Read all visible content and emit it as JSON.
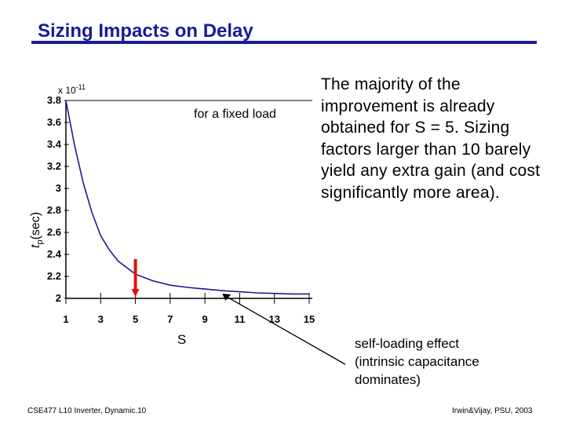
{
  "slide": {
    "title": "Sizing Impacts on Delay",
    "body": "The majority of the improvement is already obtained for S = 5.  Sizing factors larger than 10 barely yield any extra gain (and cost significantly more area).",
    "annotation": "self-loading effect (intrinsic capacitance dominates)",
    "footer_left": "CSE477  L10 Inverter, Dynamic.10",
    "footer_right": "Irwin&Vijay, PSU, 2003",
    "colors": {
      "title": "#1a1a9a",
      "curve": "#1a1a9a",
      "marker": "#e01010"
    }
  },
  "chart_data": {
    "type": "line",
    "title": "",
    "xlabel": "S",
    "ylabel": "tp(sec)",
    "ylabel_base": "t",
    "ylabel_sub": "p",
    "ylabel_unit": "(sec)",
    "y_multiplier": "x 10-11",
    "y_multiplier_base": "x 10",
    "y_multiplier_exp": "-11",
    "legend_text": "for a fixed load",
    "xlim": [
      1,
      15
    ],
    "ylim": [
      2,
      3.8
    ],
    "x_ticks": [
      1,
      3,
      5,
      7,
      9,
      11,
      13,
      15
    ],
    "y_ticks": [
      2,
      2.2,
      2.4,
      2.6,
      2.8,
      3,
      3.2,
      3.4,
      3.6,
      3.8
    ],
    "y_tick_labels": [
      "2",
      "2.2",
      "2.4",
      "2.6",
      "2.8",
      "3",
      "3.2",
      "3.4",
      "3.6",
      "3.8"
    ],
    "x_tick_labels": [
      "1",
      "3",
      "5",
      "7",
      "9",
      "11",
      "13",
      "15"
    ],
    "series": [
      {
        "name": "tp",
        "x": [
          1,
          1.5,
          2,
          2.5,
          3,
          3.5,
          4,
          5,
          6,
          7,
          8,
          9,
          10,
          11,
          12,
          13,
          14,
          15
        ],
        "y": [
          3.8,
          3.39,
          3.05,
          2.78,
          2.57,
          2.44,
          2.34,
          2.22,
          2.16,
          2.12,
          2.1,
          2.085,
          2.07,
          2.06,
          2.05,
          2.045,
          2.04,
          2.04
        ]
      }
    ],
    "highlight_x": 5,
    "pointer_x": 10
  }
}
